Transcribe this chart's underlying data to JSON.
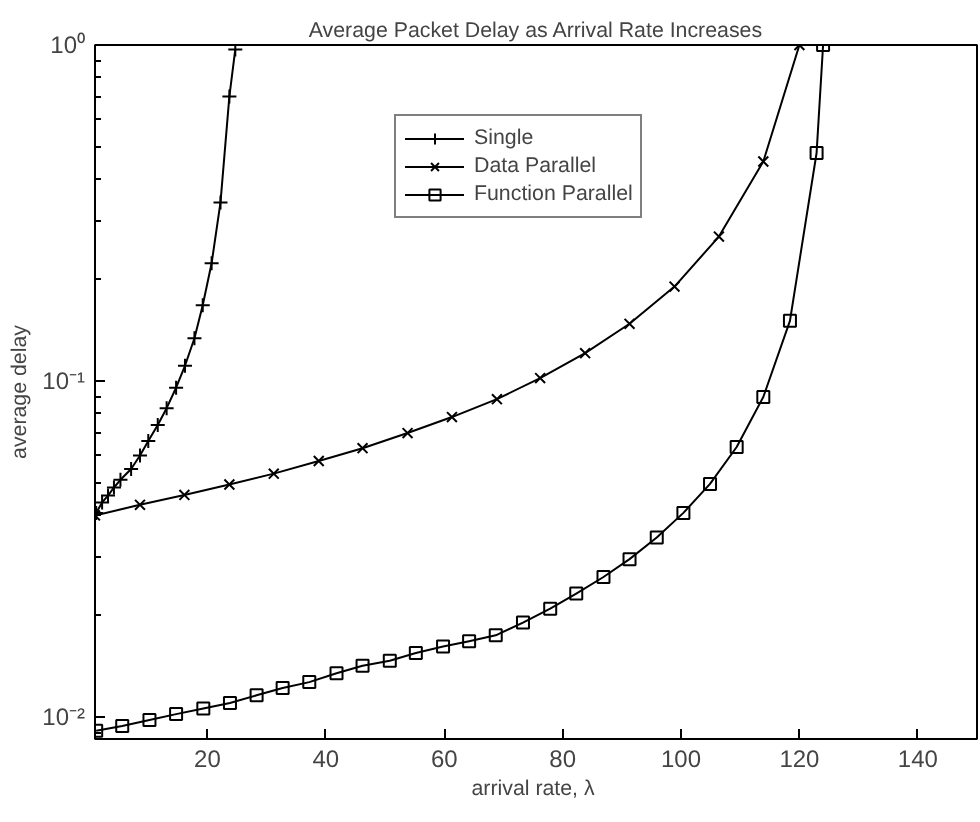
{
  "chart_data": {
    "type": "line",
    "title": "Average Packet Delay as Arrival Rate Increases",
    "xlabel": "arrival rate,  λ",
    "ylabel": "average delay",
    "log": "y",
    "grid": false,
    "legend": "top right",
    "xlim": [
      1,
      150
    ],
    "xticks": [
      20,
      40,
      60,
      80,
      100,
      120,
      140
    ],
    "ylim": [
      0.0086,
      1
    ],
    "yticks": [
      {
        "value": 0.01,
        "label": "10⁻²"
      },
      {
        "value": 0.1,
        "label": "10⁻¹"
      },
      {
        "value": 1,
        "label": "10⁰"
      }
    ],
    "series": [
      {
        "name": "Single",
        "color": "#000000",
        "marker": "cross",
        "x": [
          1.2,
          2.2,
          3.2,
          4.2,
          5.3,
          7.1,
          8.6,
          10,
          11.6,
          13.1,
          14.7,
          16.2,
          17.8,
          19.2,
          20.7,
          22.2,
          23.7,
          24.7
        ],
        "values": [
          0.0405,
          0.0435,
          0.0456,
          0.0482,
          0.0508,
          0.0547,
          0.06,
          0.0663,
          0.074,
          0.083,
          0.0955,
          0.111,
          0.134,
          0.168,
          0.224,
          0.34,
          0.703,
          0.97
        ]
      },
      {
        "name": "Data Parallel",
        "color": "#000000",
        "marker": "x",
        "x": [
          1,
          8.6,
          16.1,
          23.7,
          31.2,
          38.8,
          46.2,
          53.8,
          61.3,
          68.9,
          76.2,
          83.8,
          91.3,
          98.9,
          106.4,
          113.9,
          120
        ],
        "values": [
          0.0398,
          0.0428,
          0.0458,
          0.0492,
          0.053,
          0.0578,
          0.0631,
          0.07,
          0.0781,
          0.0883,
          0.102,
          0.121,
          0.148,
          0.191,
          0.269,
          0.45,
          1
        ]
      },
      {
        "name": "Function Parallel",
        "color": "#000000",
        "marker": "square",
        "x": [
          1.2,
          5.6,
          10.2,
          14.7,
          19.3,
          23.8,
          28.3,
          32.7,
          37.2,
          41.8,
          46.2,
          50.8,
          55.2,
          59.8,
          64.2,
          68.7,
          73.3,
          77.9,
          82.3,
          86.9,
          91.3,
          95.9,
          100.4,
          104.9,
          109.4,
          113.9,
          118.4,
          122.9,
          124
        ],
        "values": [
          0.0091,
          0.0094,
          0.0098,
          0.0102,
          0.0106,
          0.011,
          0.0116,
          0.0122,
          0.0127,
          0.0135,
          0.0142,
          0.0147,
          0.0155,
          0.0162,
          0.0168,
          0.0175,
          0.0191,
          0.021,
          0.0233,
          0.0261,
          0.0295,
          0.0342,
          0.0405,
          0.0494,
          0.0636,
          0.0896,
          0.151,
          0.477,
          1
        ]
      }
    ]
  }
}
